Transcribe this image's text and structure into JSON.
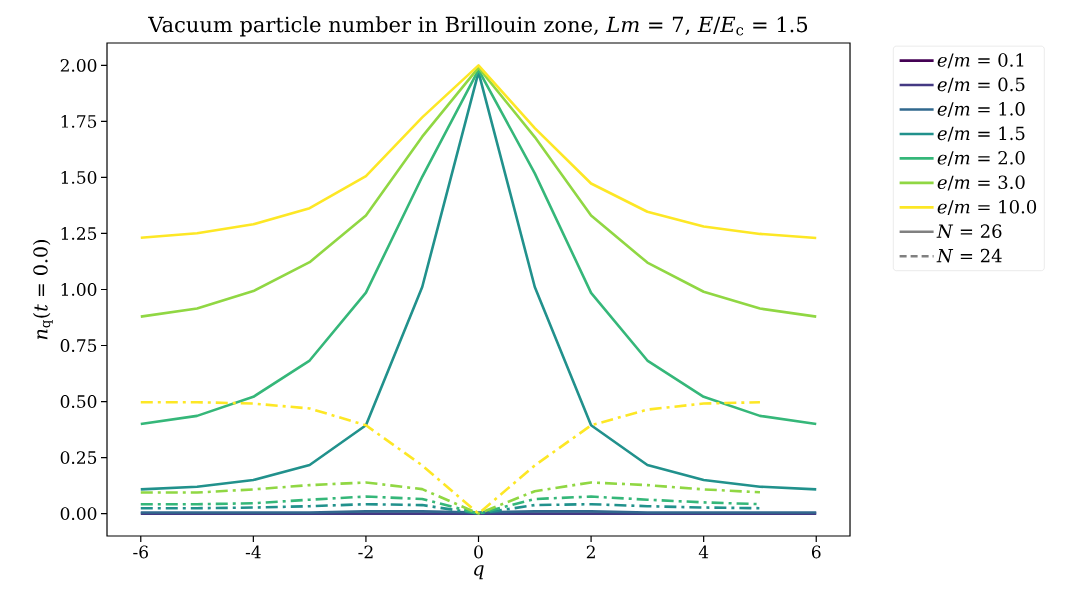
{
  "chart_data": {
    "type": "line",
    "title": "Vacuum particle number in Brillouin zone, *Lm* = 7, *E*/*E*$_{c}$ = 1.5",
    "xlabel": "*q*",
    "ylabel": "*n*$_{q}$(*t* = 0.0)",
    "x": [
      -6,
      -5,
      -4,
      -3,
      -2,
      -1,
      0,
      1,
      2,
      3,
      4,
      5,
      6
    ],
    "xlim": [
      -6.6,
      6.6
    ],
    "ylim": [
      -0.1,
      2.1
    ],
    "xticks": [
      {
        "value": -6,
        "label": "-6"
      },
      {
        "value": -4,
        "label": "-4"
      },
      {
        "value": -2,
        "label": "-2"
      },
      {
        "value": 0,
        "label": "0"
      },
      {
        "value": 2,
        "label": "2"
      },
      {
        "value": 4,
        "label": "4"
      },
      {
        "value": 6,
        "label": "6"
      }
    ],
    "yticks": [
      {
        "value": 0,
        "label": "0.00"
      },
      {
        "value": 0.25,
        "label": "0.25"
      },
      {
        "value": 0.5,
        "label": "0.50"
      },
      {
        "value": 0.75,
        "label": "0.75"
      },
      {
        "value": 1,
        "label": "1.00"
      },
      {
        "value": 1.25,
        "label": "1.25"
      },
      {
        "value": 1.5,
        "label": "1.50"
      },
      {
        "value": 1.75,
        "label": "1.75"
      },
      {
        "value": 2,
        "label": "2.00"
      }
    ],
    "legend": "top right",
    "series": [
      {
        "name": "*e*/*m* = 0.1",
        "color": "#440154",
        "line_style": "solid",
        "values": [
          null,
          null,
          null,
          null,
          null,
          null,
          null,
          null,
          null,
          null,
          null,
          null,
          null
        ]
      },
      {
        "name": "*e*/*m* = 0.5",
        "color": "#443983",
        "line_style": "solid",
        "values": [
          0,
          0,
          0,
          0,
          0,
          0,
          0,
          0,
          0,
          0,
          0,
          0,
          0
        ]
      },
      {
        "name": "*e*/*m* = 1.0",
        "color": "#31688e",
        "line_style": "solid",
        "values": [
          0.005,
          0.005,
          0.005,
          0.005,
          0.01,
          0.01,
          0.005,
          0.01,
          0.01,
          0.005,
          0.005,
          0.005,
          0.005
        ]
      },
      {
        "name": "*e*/*m* = 1.5",
        "color": "#21918c",
        "line_style": "solid",
        "values": [
          0.108,
          0.12,
          0.15,
          0.217,
          0.394,
          1.011,
          1.97,
          1.011,
          0.394,
          0.217,
          0.15,
          0.12,
          0.108
        ]
      },
      {
        "name": "*e*/*m* = 2.0",
        "color": "#35b779",
        "line_style": "solid",
        "values": [
          0.4,
          0.436,
          0.521,
          0.683,
          0.986,
          1.503,
          1.98,
          1.518,
          0.985,
          0.683,
          0.521,
          0.436,
          0.4
        ]
      },
      {
        "name": "*e*/*m* = 3.0",
        "color": "#90d743",
        "line_style": "solid",
        "values": [
          0.879,
          0.915,
          0.993,
          1.122,
          1.33,
          1.682,
          1.99,
          1.68,
          1.33,
          1.12,
          0.99,
          0.915,
          0.879
        ]
      },
      {
        "name": "*e*/*m* = 10.0",
        "color": "#fde725",
        "line_style": "solid",
        "values": [
          1.231,
          1.251,
          1.291,
          1.363,
          1.506,
          1.768,
          2.0,
          1.72,
          1.473,
          1.347,
          1.281,
          1.248,
          1.23
        ]
      },
      {
        "color": "#21918c",
        "line_style": "dashdot",
        "values": [
          0.024,
          0.024,
          0.027,
          0.033,
          0.042,
          0.038,
          0,
          0.038,
          0.042,
          0.033,
          0.027,
          0.024,
          null
        ]
      },
      {
        "color": "#35b779",
        "line_style": "dashdot",
        "values": [
          0.042,
          0.042,
          0.046,
          0.062,
          0.076,
          0.065,
          0,
          0.065,
          0.076,
          0.062,
          0.05,
          0.042,
          null
        ]
      },
      {
        "color": "#90d743",
        "line_style": "dashdot",
        "values": [
          0.094,
          0.094,
          0.108,
          0.127,
          0.139,
          0.109,
          0,
          0.1,
          0.139,
          0.127,
          0.108,
          0.095,
          null
        ]
      },
      {
        "color": "#fde725",
        "line_style": "dashdot",
        "values": [
          0.497,
          0.497,
          0.491,
          0.469,
          0.394,
          0.215,
          0,
          0.215,
          0.394,
          0.464,
          0.491,
          0.497,
          null
        ]
      },
      {
        "name": "*N* = 26",
        "color": "#808080",
        "line_style": "solid",
        "values": [
          null,
          null,
          null,
          null,
          null,
          null,
          null,
          null,
          null,
          null,
          null,
          null,
          null
        ]
      },
      {
        "name": "*N* = 24",
        "color": "#808080",
        "line_style": "dashed",
        "values": [
          null,
          null,
          null,
          null,
          null,
          null,
          null,
          null,
          null,
          null,
          null,
          null,
          null
        ]
      }
    ]
  }
}
